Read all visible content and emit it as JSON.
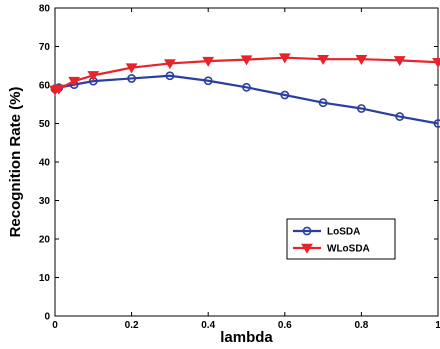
{
  "chart_data": {
    "type": "line",
    "xlabel": "lambda",
    "ylabel": "Recognition Rate  (%)",
    "xlim": [
      0,
      1
    ],
    "ylim": [
      0,
      80
    ],
    "xticks": [
      0,
      0.2,
      0.4,
      0.6,
      0.8,
      1
    ],
    "xtick_labels": [
      "0",
      "0.2",
      "0.4",
      "0.6",
      "0.8",
      "1"
    ],
    "yticks": [
      0,
      10,
      20,
      30,
      40,
      50,
      60,
      70,
      80
    ],
    "ytick_labels": [
      "0",
      "10",
      "20",
      "30",
      "40",
      "50",
      "60",
      "70",
      "80"
    ],
    "grid": false,
    "legend_position": "lower-right",
    "series": [
      {
        "name": "LoSDA",
        "color": "#2b3fa0",
        "marker": "circle",
        "x": [
          0,
          0.01,
          0.05,
          0.1,
          0.2,
          0.3,
          0.4,
          0.5,
          0.6,
          0.7,
          0.8,
          0.9,
          1.0
        ],
        "y": [
          59.0,
          59.3,
          60.1,
          61.0,
          61.7,
          62.4,
          61.1,
          59.4,
          57.4,
          55.4,
          53.9,
          51.8,
          50.0
        ]
      },
      {
        "name": "WLoSDA",
        "color": "#e8232a",
        "marker": "triangle-down",
        "x": [
          0,
          0.01,
          0.05,
          0.1,
          0.2,
          0.3,
          0.4,
          0.5,
          0.6,
          0.7,
          0.8,
          0.9,
          1.0
        ],
        "y": [
          58.7,
          59.0,
          61.0,
          62.5,
          64.5,
          65.6,
          66.2,
          66.6,
          67.1,
          66.7,
          66.7,
          66.4,
          65.9
        ]
      }
    ]
  }
}
